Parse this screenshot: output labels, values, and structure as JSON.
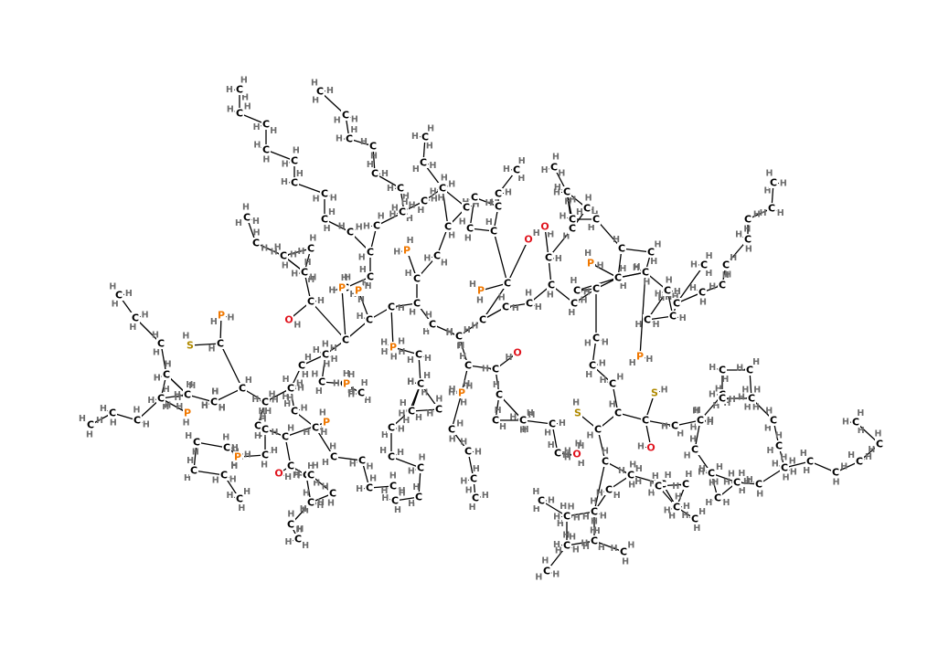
{
  "element_labels": {
    "C": "C",
    "H": "H",
    "O": "O",
    "P": "P",
    "S": "S"
  },
  "element_colors": {
    "C": "#000000",
    "H": "#6b6b6b",
    "O": "#e0141e",
    "P": "#f07800",
    "S": "#b08a00"
  }
}
